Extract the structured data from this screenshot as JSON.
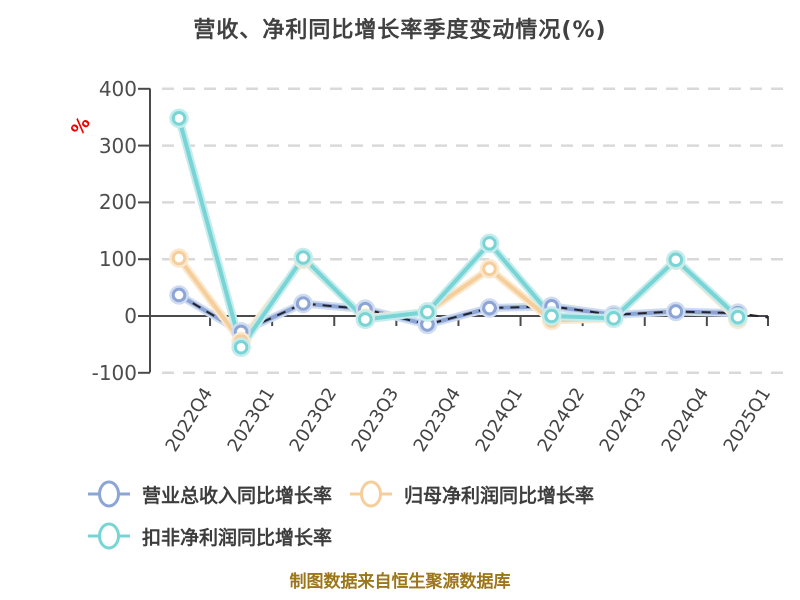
{
  "title": "营收、净利同比增长率季度变动情况(%)",
  "footer": "制图数据来自恒生聚源数据库",
  "axis": {
    "y_unit_label": "%",
    "y_unit_color": "#ee0000",
    "axis_color": "#4a4a4a",
    "grid_color": "#d9d9d9",
    "tick_label_color": "#4d4d4d"
  },
  "chart_data": {
    "type": "line",
    "title": "营收、净利同比增长率季度变动情况(%)",
    "categories": [
      "2022Q4",
      "2023Q1",
      "2023Q2",
      "2023Q3",
      "2023Q4",
      "2024Q1",
      "2024Q2",
      "2024Q3",
      "2024Q4",
      "2025Q1"
    ],
    "series": [
      {
        "id": "revenue-yoy",
        "name": "营业总收入同比增长率",
        "color": "#8ca5d6",
        "halo": "#cfdcf0",
        "overlay_dash_color": "#23232b",
        "style": "solid-with-dark-dash-overlay",
        "values": [
          37,
          -28,
          22,
          12,
          -15,
          14,
          17,
          2,
          8,
          5
        ]
      },
      {
        "id": "net-profit-yoy",
        "name": "归母净利润同比增长率",
        "color": "#f6ce9c",
        "halo": "#fbe8cd",
        "style": "solid",
        "values": [
          102,
          -45,
          100,
          -4,
          7,
          83,
          -8,
          -4,
          98,
          -6
        ]
      },
      {
        "id": "deducted-net-profit-yoy",
        "name": "扣非净利润同比增长率",
        "color": "#79d4d5",
        "halo": "#c5eced",
        "style": "solid",
        "values": [
          348,
          -55,
          103,
          -6,
          7,
          128,
          0,
          -4,
          99,
          -2
        ]
      }
    ],
    "ylim": [
      -100,
      400
    ],
    "yticks": [
      400,
      300,
      200,
      100,
      0,
      -100
    ],
    "ylabel": "%",
    "xlabel": "",
    "grid": "horizontal-dashed",
    "legend_position": "bottom-left"
  }
}
